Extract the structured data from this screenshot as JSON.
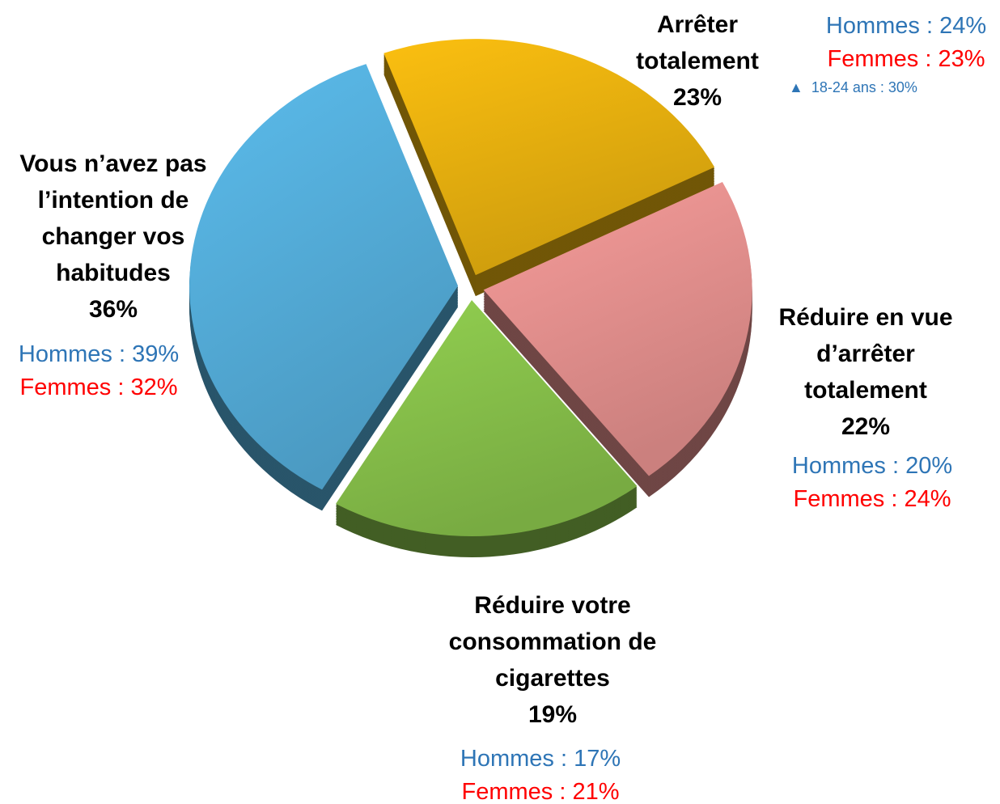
{
  "chart_data": {
    "type": "pie",
    "categories": [
      "Arrêter totalement",
      "Réduire en vue d’arrêter totalement",
      "Réduire votre consommation de cigarettes",
      "Vous n’avez pas l’intention de changer vos habitudes"
    ],
    "values": [
      23,
      22,
      19,
      36
    ],
    "value_labels": [
      "23%",
      "22%",
      "19%",
      "36%"
    ],
    "colors": [
      "#fbbf10",
      "#f79c9a",
      "#92d050",
      "#5bbcec"
    ],
    "breakdowns": [
      {
        "color": "#2e75b6",
        "values": [
          24,
          20,
          17,
          39
        ],
        "value_labels": [
          "Hommes : 24%",
          "Hommes : 20%",
          "Hommes : 17%",
          "Hommes : 39%"
        ]
      },
      {
        "color": "#ff0000",
        "values": [
          23,
          24,
          21,
          32
        ],
        "value_labels": [
          "Femmes : 23%",
          "Femmes : 24%",
          "Femmes : 21%",
          "Femmes : 32%"
        ]
      }
    ],
    "annotations": [
      {
        "text": "18-24 ans : 30%",
        "value": 30
      }
    ]
  }
}
